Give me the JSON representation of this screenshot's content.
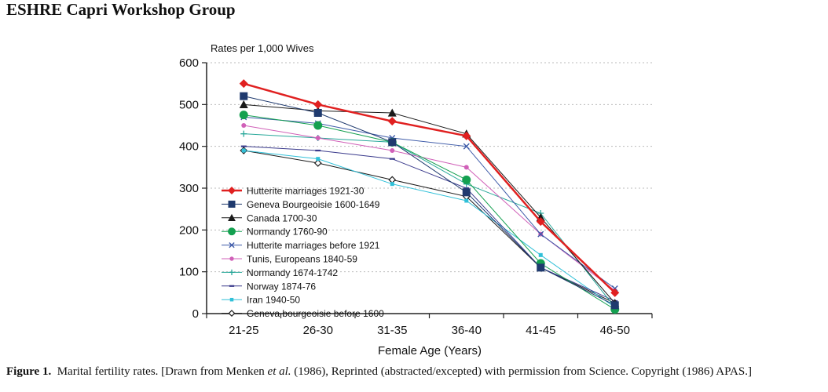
{
  "page": {
    "header": "ESHRE Capri Workshop Group",
    "caption": {
      "label": "Figure 1.",
      "part1": "Marital fertility rates. [Drawn from Menken ",
      "italic": "et al.",
      "part2": " (1986), Reprinted (abstracted/excepted) with permission from Science. Copyright (1986) APAS.]"
    }
  },
  "chart_data": {
    "type": "line",
    "title": "",
    "ylabel": "Rates per 1,000 Wives",
    "xlabel": "Female Age (Years)",
    "categories": [
      "21-25",
      "26-30",
      "31-35",
      "36-40",
      "41-45",
      "46-50"
    ],
    "ylim": [
      0,
      600
    ],
    "yticks": [
      0,
      100,
      200,
      300,
      400,
      500,
      600
    ],
    "grid": true,
    "legend_position": "bottom-left",
    "series": [
      {
        "name": "Hutterite marriages 1921-30",
        "values": [
          550,
          500,
          460,
          425,
          220,
          50
        ],
        "color": "#e02020",
        "marker": "diamond-filled",
        "stroke": 2.5
      },
      {
        "name": "Geneva Bourgeoisie 1600-1649",
        "values": [
          520,
          480,
          410,
          290,
          110,
          20
        ],
        "color": "#1f3a6e",
        "marker": "square",
        "stroke": 1
      },
      {
        "name": "Canada 1700-30",
        "values": [
          500,
          485,
          480,
          430,
          230,
          25
        ],
        "color": "#1a1a1a",
        "marker": "triangle",
        "stroke": 1
      },
      {
        "name": "Normandy 1760-90",
        "values": [
          475,
          450,
          410,
          320,
          120,
          10
        ],
        "color": "#14a050",
        "marker": "circle",
        "stroke": 1
      },
      {
        "name": "Hutterite marriages before 1921",
        "values": [
          470,
          455,
          420,
          400,
          190,
          60
        ],
        "color": "#3d5aa8",
        "marker": "x",
        "stroke": 1
      },
      {
        "name": "Tunis, Europeans 1840-59",
        "values": [
          450,
          420,
          390,
          350,
          190,
          55
        ],
        "color": "#d060b8",
        "marker": "dot",
        "stroke": 1
      },
      {
        "name": "Normandy 1674-1742",
        "values": [
          430,
          420,
          410,
          310,
          240,
          15
        ],
        "color": "#28a89a",
        "marker": "plus",
        "stroke": 1
      },
      {
        "name": "Norway 1874-76",
        "values": [
          400,
          390,
          370,
          300,
          110,
          30
        ],
        "color": "#3a3a8c",
        "marker": "dash",
        "stroke": 1
      },
      {
        "name": "Iran 1940-50",
        "values": [
          390,
          370,
          310,
          270,
          140,
          15
        ],
        "color": "#30c0d8",
        "marker": "square-small",
        "stroke": 1
      },
      {
        "name": "Geneva bourgeoisie before 1600",
        "values": [
          390,
          360,
          320,
          280,
          110,
          25
        ],
        "color": "#1a1a1a",
        "marker": "diamond-open",
        "stroke": 1
      }
    ]
  }
}
